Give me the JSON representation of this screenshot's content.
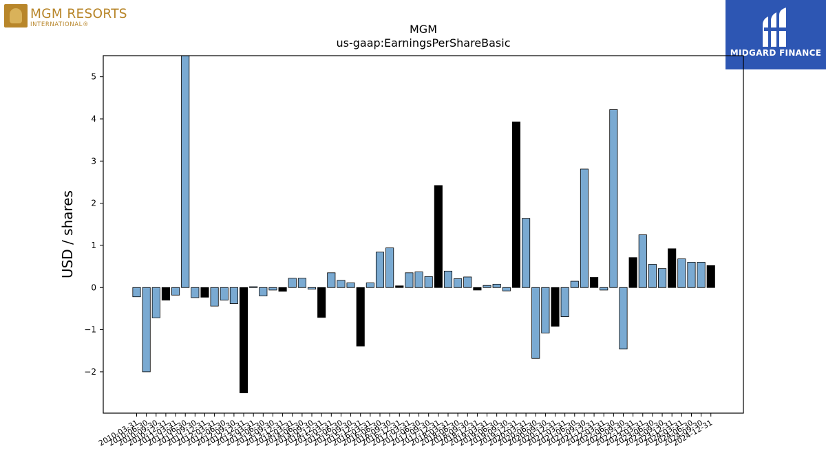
{
  "logos": {
    "left": {
      "brand": "MGM RESORTS",
      "sub": "INTERNATIONAL®"
    },
    "right": {
      "brand": "MIDGARD FINANCE"
    }
  },
  "chart_data": {
    "type": "bar",
    "title": "MGM",
    "subtitle": "us-gaap:EarningsPerShareBasic",
    "xlabel": "",
    "ylabel": "USD / shares",
    "ylim": [
      -2.98,
      5.5
    ],
    "yticks": [
      -2,
      -1,
      0,
      1,
      2,
      3,
      4,
      5
    ],
    "ytick_labels": [
      "−2",
      "−1",
      "0",
      "1",
      "2",
      "3",
      "4",
      "5"
    ],
    "grid": false,
    "colors": {
      "quarterly": "#7aaad2",
      "annual": "#000000",
      "edge": "#000000"
    },
    "categories": [
      "2010-03-31",
      "2010-06-30",
      "2010-09-30",
      "2010-12-31",
      "2011-03-31",
      "2011-06-30",
      "2011-09-30",
      "2011-12-31",
      "2012-03-31",
      "2012-06-30",
      "2012-09-30",
      "2012-12-31",
      "2013-03-31",
      "2013-06-30",
      "2013-09-30",
      "2013-12-31",
      "2014-03-31",
      "2014-06-30",
      "2014-09-30",
      "2014-12-31",
      "2015-03-31",
      "2015-06-30",
      "2015-09-30",
      "2015-12-31",
      "2016-03-31",
      "2016-06-30",
      "2016-09-30",
      "2016-12-31",
      "2017-03-31",
      "2017-06-30",
      "2017-09-30",
      "2017-12-31",
      "2018-03-31",
      "2018-06-30",
      "2018-09-30",
      "2018-12-31",
      "2019-03-31",
      "2019-06-30",
      "2019-09-30",
      "2019-12-31",
      "2020-03-31",
      "2020-06-30",
      "2020-09-30",
      "2020-12-31",
      "2021-03-31",
      "2021-06-30",
      "2021-09-30",
      "2021-12-31",
      "2022-03-31",
      "2022-06-30",
      "2022-09-30",
      "2022-12-31",
      "2023-03-31",
      "2023-06-30",
      "2023-09-30",
      "2023-12-31",
      "2024-03-31",
      "2024-06-30",
      "2024-09-30",
      "2024-12-31"
    ],
    "values": [
      -0.22,
      -2.0,
      -0.72,
      -0.3,
      -0.18,
      5.5,
      -0.24,
      -0.23,
      -0.44,
      -0.3,
      -0.38,
      -2.5,
      0.02,
      -0.2,
      -0.06,
      -0.09,
      0.22,
      0.22,
      -0.04,
      -0.71,
      0.35,
      0.17,
      0.11,
      -1.39,
      0.11,
      0.84,
      0.94,
      0.04,
      0.35,
      0.37,
      0.26,
      2.42,
      0.39,
      0.21,
      0.25,
      -0.06,
      0.05,
      0.08,
      -0.08,
      3.93,
      1.64,
      -1.68,
      -1.08,
      -0.92,
      -0.69,
      0.15,
      2.81,
      0.24,
      -0.06,
      4.22,
      -1.46,
      0.71,
      1.25,
      0.55,
      0.45,
      0.92,
      0.68,
      0.6,
      0.6,
      0.52
    ],
    "annual_flags": [
      0,
      0,
      0,
      1,
      0,
      0,
      0,
      1,
      0,
      0,
      0,
      1,
      0,
      0,
      0,
      1,
      0,
      0,
      0,
      1,
      0,
      0,
      0,
      1,
      0,
      0,
      0,
      1,
      0,
      0,
      0,
      1,
      0,
      0,
      0,
      1,
      0,
      0,
      0,
      1,
      0,
      0,
      0,
      1,
      0,
      0,
      0,
      1,
      0,
      0,
      0,
      1,
      0,
      0,
      0,
      1,
      0,
      0,
      0,
      1
    ]
  }
}
